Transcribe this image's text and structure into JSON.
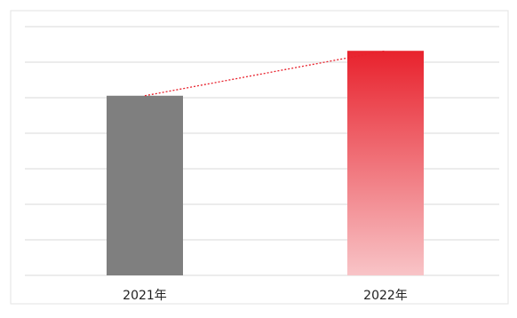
{
  "chart_data": {
    "type": "bar",
    "categories": [
      "2021年",
      "2022年"
    ],
    "values": [
      52,
      65
    ],
    "ylim": [
      0,
      72
    ],
    "grid": true,
    "legend": "none",
    "trend_line": "dotted"
  },
  "colors": {
    "bar_2021": "#7f7f7f",
    "bar_2022_top": "#e8222d",
    "bar_2022_bottom": "#f8c4c7",
    "trend_line": "#e8222d",
    "gridline": "#d9d9d9",
    "frame": "#e3e3e3"
  }
}
